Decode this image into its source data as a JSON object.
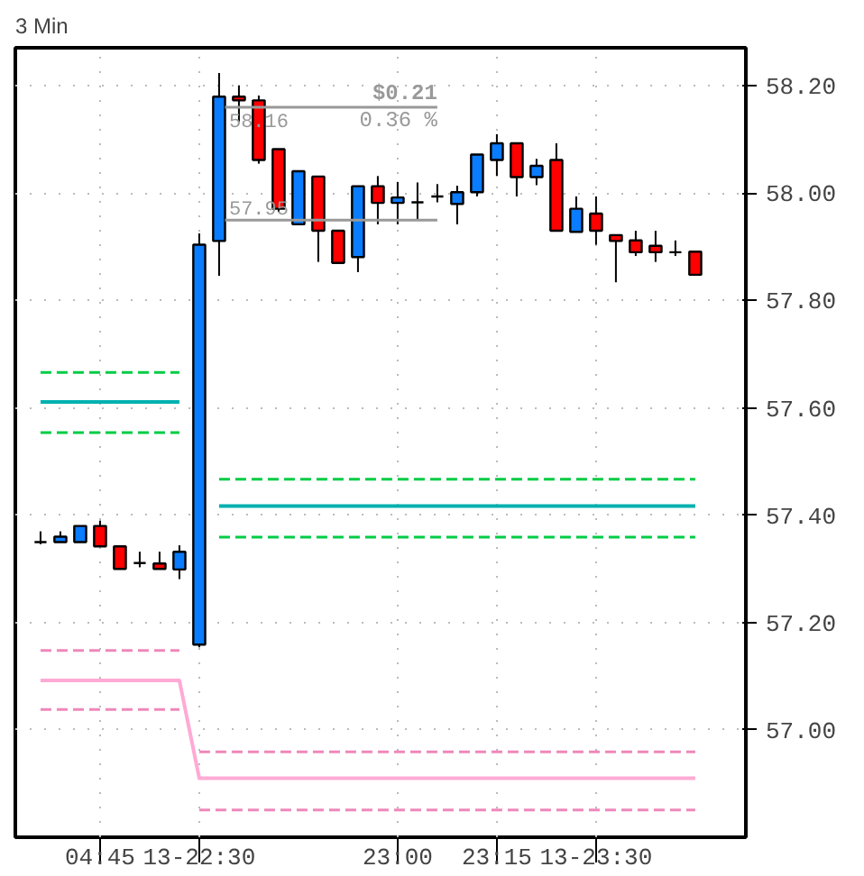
{
  "chart_data": {
    "type": "candlestick",
    "title": "3 Min",
    "categories": [
      null,
      null,
      null,
      "04:45",
      null,
      null,
      null,
      null,
      "13-22:30",
      null,
      null,
      null,
      null,
      null,
      null,
      null,
      null,
      null,
      "23:00",
      null,
      null,
      null,
      null,
      "23:15",
      null,
      null,
      null,
      null,
      "13-23:30",
      null,
      null,
      null,
      null,
      null
    ],
    "ohlc": [
      [
        57.35,
        57.37,
        57.346,
        57.35
      ],
      [
        57.35,
        57.37,
        57.35,
        57.36
      ],
      [
        57.35,
        57.38,
        57.35,
        57.38
      ],
      [
        57.38,
        57.39,
        57.342,
        57.342
      ],
      [
        57.342,
        57.342,
        57.3,
        57.3
      ],
      [
        57.311,
        57.332,
        57.303,
        57.311
      ],
      [
        57.31,
        57.332,
        57.3,
        57.3
      ],
      [
        57.299,
        57.344,
        57.281,
        57.332
      ],
      [
        57.159,
        57.925,
        57.154,
        57.904
      ],
      [
        57.911,
        58.224,
        57.846,
        58.18
      ],
      [
        58.18,
        58.201,
        58.133,
        58.173
      ],
      [
        58.173,
        58.182,
        58.055,
        58.062
      ],
      [
        58.082,
        58.082,
        57.965,
        57.971
      ],
      [
        57.942,
        58.041,
        57.942,
        58.041
      ],
      [
        58.031,
        58.031,
        57.872,
        57.93
      ],
      [
        57.93,
        57.93,
        57.87,
        57.87
      ],
      [
        57.881,
        58.013,
        57.853,
        58.013
      ],
      [
        58.013,
        58.032,
        57.942,
        57.982
      ],
      [
        57.982,
        58.021,
        57.942,
        57.992
      ],
      [
        57.983,
        58.02,
        57.95,
        57.983
      ],
      [
        57.994,
        58.017,
        57.983,
        57.994
      ],
      [
        57.98,
        58.014,
        57.942,
        58.002
      ],
      [
        58.002,
        58.072,
        57.994,
        58.072
      ],
      [
        58.062,
        58.11,
        58.032,
        58.093
      ],
      [
        58.093,
        58.093,
        57.994,
        58.03
      ],
      [
        58.03,
        58.064,
        58.015,
        58.051
      ],
      [
        58.062,
        58.093,
        57.93,
        57.93
      ],
      [
        57.928,
        57.994,
        57.928,
        57.971
      ],
      [
        57.962,
        57.994,
        57.904,
        57.93
      ],
      [
        57.922,
        57.922,
        57.834,
        57.911
      ],
      [
        57.912,
        57.93,
        57.883,
        57.89
      ],
      [
        57.902,
        57.93,
        57.872,
        57.89
      ],
      [
        57.89,
        57.912,
        57.883,
        57.89
      ],
      [
        57.891,
        57.891,
        57.848,
        57.848
      ]
    ],
    "colors": [
      "#000000",
      "#0a7cff",
      "#0a7cff",
      "#ff0000",
      "#ff0000",
      "#000000",
      "#ff0000",
      "#0a7cff",
      "#0a7cff",
      "#0a7cff",
      "#ff0000",
      "#ff0000",
      "#ff0000",
      "#0a7cff",
      "#ff0000",
      "#ff0000",
      "#0a7cff",
      "#ff0000",
      "#0a7cff",
      "#000000",
      "#000000",
      "#0a7cff",
      "#0a7cff",
      "#0a7cff",
      "#ff0000",
      "#0a7cff",
      "#ff0000",
      "#0a7cff",
      "#ff0000",
      "#ff0000",
      "#ff0000",
      "#ff0000",
      "#000000",
      "#ff0000"
    ],
    "series": [
      {
        "type": "line",
        "color": "#00b0b0",
        "line_style": "solid",
        "values": [
          57.611,
          57.611,
          57.611,
          57.611,
          57.611,
          57.611,
          57.611,
          57.611,
          null,
          57.417,
          57.417,
          57.417,
          57.417,
          57.417,
          57.417,
          57.417,
          57.417,
          57.417,
          57.417,
          57.417,
          57.417,
          57.417,
          57.417,
          57.417,
          57.417,
          57.417,
          57.417,
          57.417,
          57.417,
          57.417,
          57.417,
          57.417,
          57.417,
          57.417
        ]
      },
      {
        "type": "line",
        "color": "#ffaad4",
        "line_style": "solid",
        "values": [
          57.092,
          57.092,
          57.092,
          57.092,
          57.092,
          57.092,
          57.092,
          57.092,
          56.91,
          56.91,
          56.91,
          56.91,
          56.91,
          56.91,
          56.91,
          56.91,
          56.91,
          56.91,
          56.91,
          56.91,
          56.91,
          56.91,
          56.91,
          56.91,
          56.91,
          56.91,
          56.91,
          56.91,
          56.91,
          56.91,
          56.91,
          56.91,
          56.91,
          56.91
        ]
      },
      {
        "type": "line",
        "color": "#00cc44",
        "line_style": "dashed",
        "values": [
          57.666,
          57.666,
          57.666,
          57.666,
          57.666,
          57.666,
          57.666,
          57.666,
          null,
          null,
          null,
          null,
          null,
          null,
          null,
          null,
          null,
          null,
          null,
          null,
          null,
          null,
          null,
          null,
          null,
          null,
          null,
          null,
          null,
          null,
          null,
          null,
          null,
          null
        ]
      },
      {
        "type": "line",
        "color": "#00cc44",
        "line_style": "dashed",
        "values": [
          57.554,
          57.554,
          57.554,
          57.554,
          57.554,
          57.554,
          57.554,
          57.554,
          null,
          null,
          null,
          null,
          null,
          null,
          null,
          null,
          null,
          null,
          null,
          null,
          null,
          null,
          null,
          null,
          null,
          null,
          null,
          null,
          null,
          null,
          null,
          null,
          null,
          null
        ]
      },
      {
        "type": "line",
        "color": "#00cc44",
        "line_style": "dashed",
        "values": [
          null,
          null,
          null,
          null,
          null,
          null,
          null,
          null,
          null,
          57.467,
          57.467,
          57.467,
          57.467,
          57.467,
          57.467,
          57.467,
          57.467,
          57.467,
          57.467,
          57.467,
          57.467,
          57.467,
          57.467,
          57.467,
          57.467,
          57.467,
          57.467,
          57.467,
          57.467,
          57.467,
          57.467,
          57.467,
          57.467,
          57.467
        ]
      },
      {
        "type": "line",
        "color": "#00cc44",
        "line_style": "dashed",
        "values": [
          null,
          null,
          null,
          null,
          null,
          null,
          null,
          null,
          null,
          57.359,
          57.359,
          57.359,
          57.359,
          57.359,
          57.359,
          57.359,
          57.359,
          57.359,
          57.359,
          57.359,
          57.359,
          57.359,
          57.359,
          57.359,
          57.359,
          57.359,
          57.359,
          57.359,
          57.359,
          57.359,
          57.359,
          57.359,
          57.359,
          57.359
        ]
      },
      {
        "type": "line",
        "color": "#ee88bb",
        "line_style": "dashed",
        "values": [
          57.148,
          57.148,
          57.148,
          57.148,
          57.148,
          57.148,
          57.148,
          57.148,
          null,
          null,
          null,
          null,
          null,
          null,
          null,
          null,
          null,
          null,
          null,
          null,
          null,
          null,
          null,
          null,
          null,
          null,
          null,
          null,
          null,
          null,
          null,
          null,
          null,
          null
        ]
      },
      {
        "type": "line",
        "color": "#ee88bb",
        "line_style": "dashed",
        "values": [
          57.038,
          57.038,
          57.038,
          57.038,
          57.038,
          57.038,
          57.038,
          57.038,
          null,
          null,
          null,
          null,
          null,
          null,
          null,
          null,
          null,
          null,
          null,
          null,
          null,
          null,
          null,
          null,
          null,
          null,
          null,
          null,
          null,
          null,
          null,
          null,
          null,
          null
        ]
      },
      {
        "type": "line",
        "color": "#ee88bb",
        "line_style": "dashed",
        "values": [
          null,
          null,
          null,
          null,
          null,
          null,
          null,
          null,
          56.959,
          56.959,
          56.959,
          56.959,
          56.959,
          56.959,
          56.959,
          56.959,
          56.959,
          56.959,
          56.959,
          56.959,
          56.959,
          56.959,
          56.959,
          56.959,
          56.959,
          56.959,
          56.959,
          56.959,
          56.959,
          56.959,
          56.959,
          56.959,
          56.959,
          56.959
        ]
      },
      {
        "type": "line",
        "color": "#ee88bb",
        "line_style": "dashed",
        "values": [
          null,
          null,
          null,
          null,
          null,
          null,
          null,
          null,
          56.851,
          56.851,
          56.851,
          56.851,
          56.851,
          56.851,
          56.851,
          56.851,
          56.851,
          56.851,
          56.851,
          56.851,
          56.851,
          56.851,
          56.851,
          56.851,
          56.851,
          56.851,
          56.851,
          56.851,
          56.851,
          56.851,
          56.851,
          56.851,
          56.851,
          56.851
        ]
      }
    ],
    "ylim": [
      56.8,
      58.271
    ],
    "yticks": [
      {
        "value": 57.0,
        "label": "57.00"
      },
      {
        "value": 57.2,
        "label": "57.20"
      },
      {
        "value": 57.4,
        "label": "57.40"
      },
      {
        "value": 57.6,
        "label": "57.60"
      },
      {
        "value": 57.8,
        "label": "57.80"
      },
      {
        "value": 58.0,
        "label": "58.00"
      },
      {
        "value": 58.2,
        "label": "58.20"
      }
    ],
    "ref_lines": [
      {
        "axis": "y",
        "value": 58.16,
        "label": "58.16",
        "color": "#999999"
      },
      {
        "axis": "y",
        "value": 57.95,
        "label": "57.95",
        "color": "#999999"
      }
    ],
    "annotations": [
      "$0.21",
      "0.36 %"
    ],
    "grid": true
  }
}
